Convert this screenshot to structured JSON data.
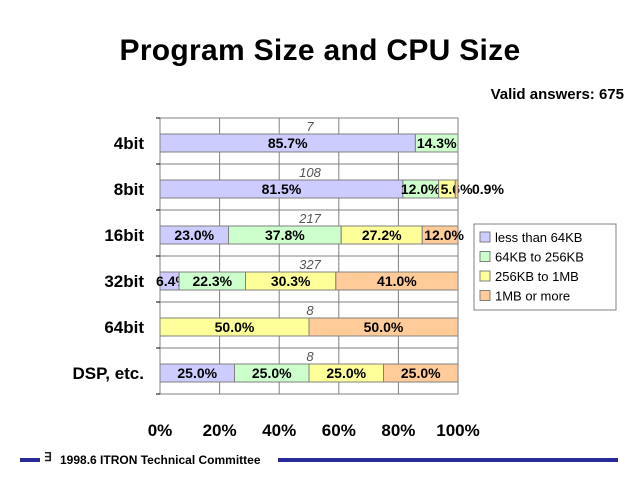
{
  "title": "Program Size and CPU Size",
  "valid_answers": "Valid answers: 675",
  "footer": {
    "text": "1998.6  ITRON Technical Committee",
    "icon": "itron-logo-icon"
  },
  "chart_data": {
    "type": "bar",
    "orientation": "horizontal",
    "stacked": "percent",
    "title": "Program Size and CPU Size",
    "categories": [
      "4bit",
      "8bit",
      "16bit",
      "32bit",
      "64bit",
      "DSP, etc."
    ],
    "category_counts": [
      "7",
      "108",
      "217",
      "327",
      "8",
      "8"
    ],
    "series": [
      {
        "name": "less than 64KB",
        "color": "#ccccff",
        "values": [
          85.7,
          81.5,
          23.0,
          6.4,
          0.0,
          25.0
        ],
        "labels": [
          "85.7%",
          "81.5%",
          "23.0%",
          "6.4%",
          "",
          "25.0%"
        ]
      },
      {
        "name": "64KB to 256KB",
        "color": "#ccffcc",
        "values": [
          14.3,
          12.0,
          37.8,
          22.3,
          0.0,
          25.0
        ],
        "labels": [
          "14.3%",
          "12.0%",
          "37.8%",
          "22.3%",
          "",
          "25.0%"
        ]
      },
      {
        "name": "256KB to 1MB",
        "color": "#ffff99",
        "values": [
          0.0,
          5.6,
          27.2,
          30.3,
          50.0,
          25.0
        ],
        "labels": [
          "",
          "5.6%",
          "27.2%",
          "30.3%",
          "50.0%",
          "25.0%"
        ]
      },
      {
        "name": "1MB or more",
        "color": "#ffcc99",
        "values": [
          0.0,
          0.9,
          12.0,
          41.0,
          50.0,
          25.0
        ],
        "labels": [
          "",
          "0.9%",
          "12.0%",
          "41.0%",
          "50.0%",
          "25.0%"
        ]
      }
    ],
    "x_ticks": [
      "0%",
      "20%",
      "40%",
      "60%",
      "80%",
      "100%"
    ],
    "xlim": [
      0,
      100
    ],
    "grid": true,
    "legend": "right"
  }
}
